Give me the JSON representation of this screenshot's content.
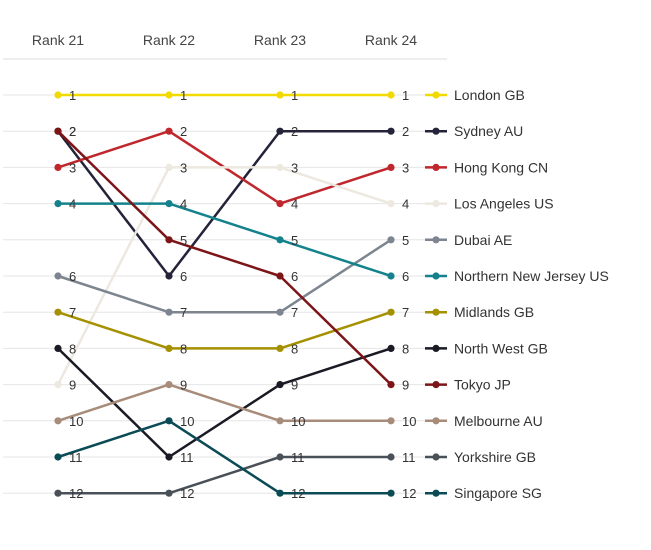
{
  "chart_data": {
    "type": "line",
    "categories": [
      "Rank 21",
      "Rank 22",
      "Rank 23",
      "Rank 24"
    ],
    "y_reversed": true,
    "ylim": [
      1,
      12
    ],
    "grid": true,
    "legend_position": "right",
    "series": [
      {
        "name": "London GB",
        "color": "#f2d900",
        "values": [
          1,
          1,
          1,
          1
        ]
      },
      {
        "name": "Sydney AU",
        "color": "#24233a",
        "values": [
          2,
          6,
          2,
          2
        ]
      },
      {
        "name": "Hong Kong CN",
        "color": "#c0272d",
        "values": [
          3,
          2,
          4,
          3
        ]
      },
      {
        "name": "Los Angeles US",
        "color": "#ede8e0",
        "values": [
          9,
          3,
          3,
          4
        ]
      },
      {
        "name": "Dubai AE",
        "color": "#7d8590",
        "values": [
          6,
          7,
          7,
          5
        ]
      },
      {
        "name": "Northern New Jersey US",
        "color": "#13828c",
        "values": [
          4,
          4,
          5,
          6
        ]
      },
      {
        "name": "Midlands GB",
        "color": "#a59100",
        "values": [
          7,
          8,
          8,
          7
        ]
      },
      {
        "name": "North West GB",
        "color": "#1a1a24",
        "values": [
          8,
          11,
          9,
          8
        ]
      },
      {
        "name": "Tokyo JP",
        "color": "#7d1418",
        "values": [
          2,
          5,
          6,
          9
        ]
      },
      {
        "name": "Melbourne AU",
        "color": "#a78c7a",
        "values": [
          10,
          9,
          10,
          10
        ]
      },
      {
        "name": "Yorkshire GB",
        "color": "#4a5058",
        "values": [
          12,
          12,
          11,
          11
        ]
      },
      {
        "name": "Singapore SG",
        "color": "#0b4b55",
        "values": [
          11,
          10,
          12,
          12
        ]
      }
    ]
  }
}
